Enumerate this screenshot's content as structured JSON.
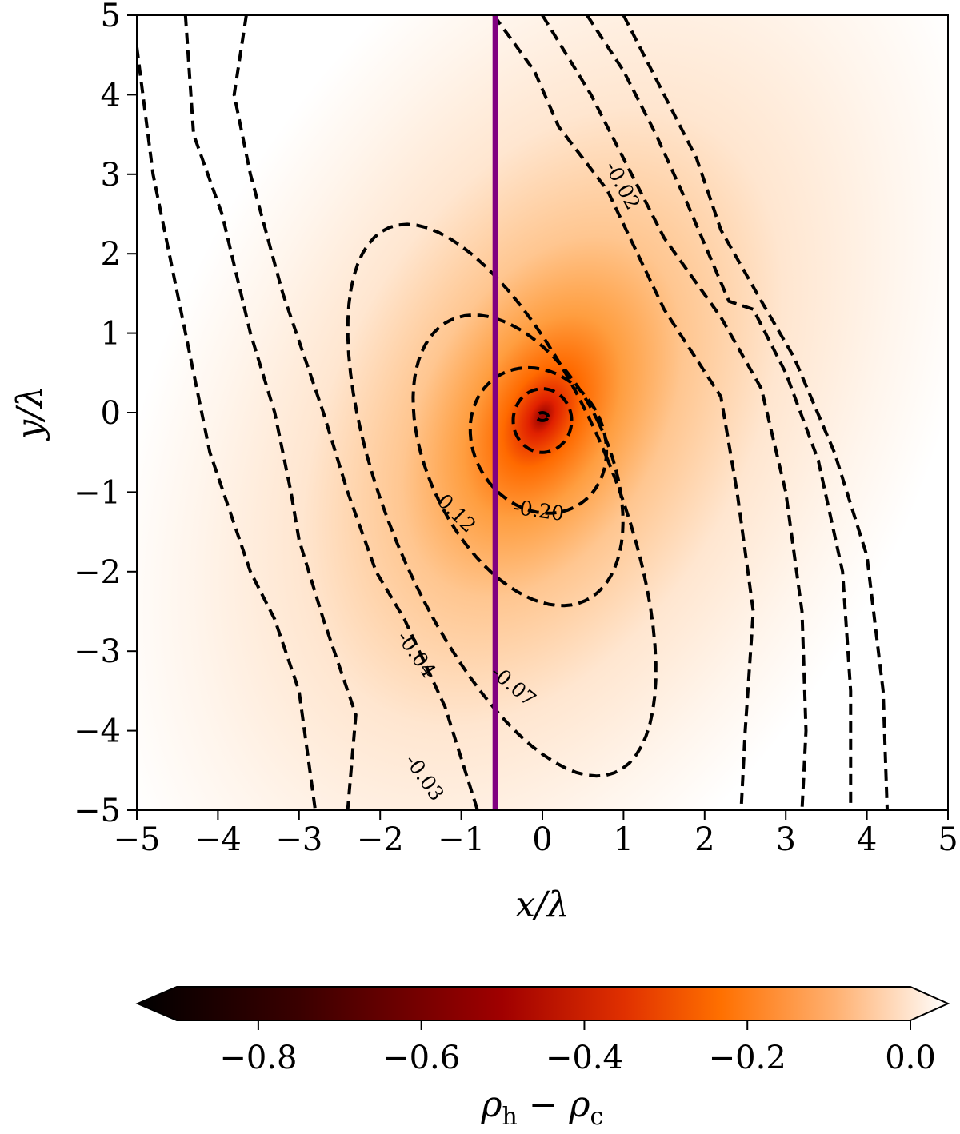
{
  "chart_data": {
    "type": "heatmap",
    "xlabel": "x/λ",
    "ylabel": "y/λ",
    "xlim": [
      -5,
      5
    ],
    "ylim": [
      -5,
      5
    ],
    "x_ticks": [
      "−5",
      "−4",
      "−3",
      "−2",
      "−1",
      "0",
      "1",
      "2",
      "3",
      "4",
      "5"
    ],
    "y_ticks": [
      "5",
      "4",
      "3",
      "2",
      "1",
      "0",
      "−1",
      "−2",
      "−3",
      "−4",
      "−5"
    ],
    "grid": false,
    "colormap": "gist_heat",
    "center": {
      "x": 0,
      "y": -0.05
    },
    "peak_value": -0.9,
    "vertical_line": {
      "x": -0.58,
      "color": "#800080"
    },
    "contour_levels": [
      -0.02,
      -0.03,
      -0.04,
      -0.07,
      -0.12,
      -0.2
    ],
    "contour_labels": [
      {
        "text": "-0.02",
        "x": 0.97,
        "y": 2.85,
        "angle": 62
      },
      {
        "text": "-0.04",
        "x": -1.57,
        "y": -3.05,
        "angle": 55
      },
      {
        "text": "-0.03",
        "x": -1.47,
        "y": -4.6,
        "angle": 55
      },
      {
        "text": "-0.07",
        "x": -0.37,
        "y": -3.45,
        "angle": 40
      },
      {
        "text": "-0.12",
        "x": -1.1,
        "y": -1.25,
        "angle": 45
      },
      {
        "text": "-0.20",
        "x": -0.05,
        "y": -1.25,
        "angle": 8
      }
    ],
    "colorbar": {
      "label": "ρh − ρc",
      "range": [
        -0.9,
        0.0
      ],
      "ticks": [
        -0.8,
        -0.6,
        -0.4,
        -0.2,
        0.0
      ],
      "tick_labels": [
        "−0.8",
        "−0.6",
        "−0.4",
        "−0.2",
        "0.0"
      ],
      "extend": "both"
    }
  }
}
